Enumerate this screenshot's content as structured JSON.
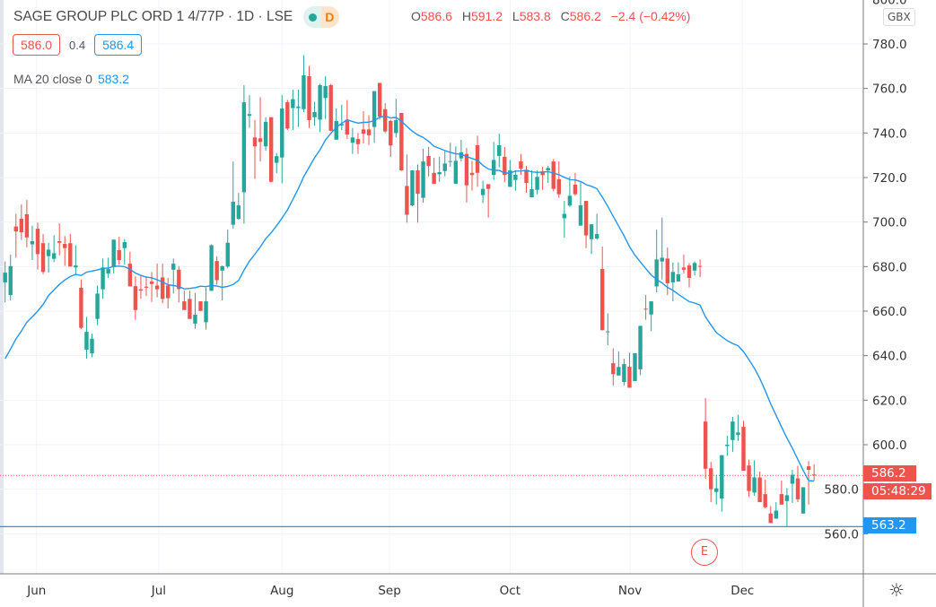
{
  "header": {
    "symbol_title": "SAGE GROUP PLC ORD 1 4/77P · 1D · LSE",
    "status_badge_letter": "D",
    "ohlc": {
      "o_label": "O",
      "o": "586.6",
      "h_label": "H",
      "h": "591.2",
      "l_label": "L",
      "l": "583.8",
      "c_label": "C",
      "c": "586.2",
      "change": "−2.4 (−0.42%)"
    },
    "bid": "586.0",
    "spread": "0.4",
    "ask": "586.4",
    "indicator_label": "MA 20 close 0",
    "indicator_value": "583.2"
  },
  "price_axis": {
    "currency": "GBX",
    "ticks": [
      "800.0",
      "780.0",
      "760.0",
      "740.0",
      "720.0",
      "700.0",
      "680.0",
      "660.0",
      "640.0",
      "620.0",
      "600.0",
      "580.0",
      "560.0"
    ],
    "last_price_label": "586.2",
    "countdown": "05:48:29",
    "horizontal_line_label": "563.2"
  },
  "earnings_marker": "E",
  "colors": {
    "up": "#26a69a",
    "down": "#ef5350",
    "ma": "#2196f3",
    "hline": "#2196f3",
    "grid": "#f0f3fa"
  },
  "chart_data": {
    "type": "candlestick",
    "title": "SAGE GROUP PLC ORD 1 4/77P · 1D · LSE",
    "ylim": [
      550,
      800
    ],
    "grid": true,
    "x_ticks": [
      {
        "label": "Jun",
        "bar": 5.8
      },
      {
        "label": "Jul",
        "bar": 28.3
      },
      {
        "label": "Aug",
        "bar": 51
      },
      {
        "label": "Sep",
        "bar": 70.8
      },
      {
        "label": "Oct",
        "bar": 93
      },
      {
        "label": "Nov",
        "bar": 115.1
      },
      {
        "label": "Dec",
        "bar": 135.8
      }
    ],
    "horizontal_line": 563.2,
    "last_price": 586.2,
    "ma_period": 20,
    "ma_leading": [
      638.6,
      643,
      647.5,
      651,
      655,
      657.5,
      660,
      663,
      667,
      669.5,
      672,
      674,
      675.5,
      676.5,
      676,
      677.5,
      678,
      678.5,
      679.2
    ],
    "candles_ohlc": [
      [
        672.9,
        682.3,
        663.9,
        677.3
      ],
      [
        667.2,
        685.4,
        664.8,
        680.2
      ],
      [
        698,
        703.7,
        684,
        695.8
      ],
      [
        701.5,
        708,
        692,
        695.4
      ],
      [
        703.5,
        710,
        688.7,
        693.1
      ],
      [
        690,
        698.4,
        683,
        691.4
      ],
      [
        697,
        699.7,
        678.6,
        685.6
      ],
      [
        690.5,
        694.6,
        676.6,
        677.6
      ],
      [
        684.7,
        690.7,
        677.3,
        687.6
      ],
      [
        683.5,
        694.1,
        682,
        686
      ],
      [
        691.4,
        699.4,
        685,
        690.7
      ],
      [
        690.2,
        693.7,
        680.3,
        688.3
      ],
      [
        690.5,
        694.7,
        680,
        680
      ],
      [
        679.6,
        689.6,
        676.2,
        680.5
      ],
      [
        670.5,
        674.2,
        652,
        652.5
      ],
      [
        642.7,
        657.4,
        638.6,
        650.7
      ],
      [
        641,
        649.8,
        639.3,
        647.6
      ],
      [
        656.5,
        671.5,
        653.7,
        667.9
      ],
      [
        669.8,
        683.6,
        665.5,
        679.6
      ],
      [
        676.9,
        684,
        674.9,
        678.9
      ],
      [
        679.8,
        692.1,
        676.9,
        692.1
      ],
      [
        687.4,
        693.4,
        680.9,
        682.9
      ],
      [
        688.3,
        692.4,
        680.9,
        691
      ],
      [
        681.3,
        686.7,
        671.1,
        671.1
      ],
      [
        671.2,
        675.6,
        656.1,
        660.5
      ],
      [
        669.8,
        676.2,
        665.5,
        669.2
      ],
      [
        671,
        675.6,
        666.8,
        670.5
      ],
      [
        673.3,
        677.6,
        664.1,
        672.2
      ],
      [
        671.5,
        681.3,
        666.2,
        669.8
      ],
      [
        675.1,
        681.3,
        663.5,
        665.5
      ],
      [
        671.5,
        674.9,
        661.2,
        665.8
      ],
      [
        678.6,
        683.6,
        667.9,
        681.3
      ],
      [
        678.6,
        680.2,
        663.9,
        669.9
      ],
      [
        664.4,
        669.2,
        660.5,
        660.5
      ],
      [
        665.5,
        669.2,
        656.5,
        656.5
      ],
      [
        654.4,
        668.2,
        652.1,
        658.4
      ],
      [
        664.4,
        664.4,
        660.1,
        660.1
      ],
      [
        655,
        670.6,
        651.7,
        664.4
      ],
      [
        669.1,
        690,
        669.1,
        689.6
      ],
      [
        682.5,
        684.5,
        671.9,
        673.9
      ],
      [
        678.2,
        680.5,
        664.8,
        680.2
      ],
      [
        680,
        696.6,
        679.2,
        690.7
      ],
      [
        698.8,
        727.2,
        697,
        709.1
      ],
      [
        701.5,
        713.1,
        701.1,
        707.5
      ],
      [
        713.4,
        761.5,
        699.3,
        753.8
      ],
      [
        747.7,
        757,
        742.3,
        748.5
      ],
      [
        738,
        745.8,
        719.4,
        734
      ],
      [
        737.6,
        756.1,
        727.2,
        736
      ],
      [
        734,
        747.1,
        732,
        745
      ],
      [
        747.1,
        747.1,
        717.8,
        718.1
      ],
      [
        726.6,
        731,
        721.9,
        729.6
      ],
      [
        729,
        757,
        717.4,
        751
      ],
      [
        753.8,
        754.8,
        741.3,
        742
      ],
      [
        751.2,
        759.5,
        741.3,
        755.2
      ],
      [
        751.2,
        759.5,
        742.7,
        751.9
      ],
      [
        750.7,
        774.9,
        749.4,
        765.9
      ],
      [
        765.5,
        770.2,
        742.3,
        745.8
      ],
      [
        747.1,
        754,
        743.3,
        749.4
      ],
      [
        746,
        762.1,
        740.4,
        761.5
      ],
      [
        755.7,
        765.5,
        746.3,
        761.1
      ],
      [
        761.5,
        762.1,
        740.7,
        741
      ],
      [
        737,
        751,
        737,
        745.4
      ],
      [
        743.4,
        752.7,
        741.3,
        744
      ],
      [
        746,
        754.8,
        737.3,
        739.3
      ],
      [
        735.6,
        742.3,
        730.6,
        738
      ],
      [
        737.3,
        740,
        730.6,
        735
      ],
      [
        741.6,
        749.8,
        735.3,
        739.7
      ],
      [
        741.6,
        748,
        734.6,
        739
      ],
      [
        742.7,
        758.8,
        735.6,
        758.8
      ],
      [
        762.5,
        762.5,
        746,
        747.4
      ],
      [
        750.7,
        753.4,
        740,
        740.7
      ],
      [
        745.4,
        746,
        729.2,
        734.4
      ],
      [
        740,
        755.4,
        738,
        745.8
      ],
      [
        749,
        749,
        723,
        723.2
      ],
      [
        716.2,
        730.3,
        699.7,
        703.3
      ],
      [
        707.5,
        723.2,
        707.1,
        723.2
      ],
      [
        723.2,
        725.9,
        699.7,
        712.7
      ],
      [
        710.9,
        732.9,
        708.7,
        727.2
      ],
      [
        729.7,
        733.7,
        720.5,
        725.2
      ],
      [
        722.1,
        728.9,
        717.2,
        717.2
      ],
      [
        721.5,
        729.3,
        718.1,
        722.4
      ],
      [
        722.9,
        731.9,
        720.5,
        726.3
      ],
      [
        727.1,
        735.6,
        724.8,
        727.4
      ],
      [
        717.2,
        734,
        717.2,
        727.5
      ],
      [
        728.6,
        736.9,
        727.2,
        731.3
      ],
      [
        730.6,
        733.3,
        708.8,
        716.5
      ],
      [
        722.1,
        727.5,
        714.1,
        721.1
      ],
      [
        734.5,
        738.8,
        715.8,
        722.1
      ],
      [
        712.1,
        718.5,
        708.5,
        714.9
      ],
      [
        717,
        717,
        702,
        714.9
      ],
      [
        721.2,
        736,
        718.9,
        727.9
      ],
      [
        729.7,
        739.7,
        724.6,
        734.5
      ],
      [
        729.3,
        733.7,
        717.9,
        721.2
      ],
      [
        715.8,
        727.9,
        715.8,
        723.2
      ],
      [
        718.9,
        723.2,
        714.1,
        721.2
      ],
      [
        727.2,
        730.6,
        721.2,
        723.9
      ],
      [
        723.5,
        725.2,
        713.2,
        717.6
      ],
      [
        711.1,
        723.2,
        711.1,
        714.8
      ],
      [
        714.5,
        723.2,
        712.5,
        720.3
      ],
      [
        722.4,
        724.8,
        714.5,
        721.1
      ],
      [
        723.2,
        725.2,
        717.6,
        724.3
      ],
      [
        727.2,
        728.3,
        713.8,
        714.9
      ],
      [
        719.2,
        727.2,
        710.9,
        712.5
      ],
      [
        701.7,
        709.5,
        693,
        703.7
      ],
      [
        707.4,
        720.5,
        706.8,
        711.8
      ],
      [
        716.8,
        722.1,
        711.8,
        712.5
      ],
      [
        698.4,
        717.9,
        698.4,
        707.5
      ],
      [
        709.5,
        709.5,
        688.3,
        694
      ],
      [
        692.3,
        699,
        685.6,
        699
      ],
      [
        692.6,
        703.7,
        692.1,
        694.6
      ],
      [
        678.9,
        689,
        651.4,
        651.4
      ],
      [
        650.6,
        659,
        644.7,
        650.9
      ],
      [
        636.6,
        643.3,
        626.6,
        631.7
      ],
      [
        631.1,
        642,
        631.1,
        634.9
      ],
      [
        628.2,
        638.6,
        626.6,
        636.2
      ],
      [
        635,
        641.3,
        625.6,
        625.6
      ],
      [
        628.6,
        641.1,
        628.6,
        641.1
      ],
      [
        633.9,
        653.4,
        631.3,
        653.4
      ],
      [
        661.1,
        667.2,
        656.1,
        660.7
      ],
      [
        658.5,
        664.4,
        651,
        664.4
      ],
      [
        671.1,
        696.6,
        668.4,
        683.2
      ],
      [
        682.3,
        702,
        674.2,
        684
      ],
      [
        683.6,
        688.6,
        667.2,
        672.5
      ],
      [
        672.9,
        681.9,
        664.4,
        677.6
      ],
      [
        673.3,
        681.9,
        673.3,
        676.5
      ],
      [
        679.6,
        685.4,
        676.9,
        678.6
      ],
      [
        680.5,
        681.6,
        670.6,
        674.9
      ],
      [
        678.2,
        682.3,
        676,
        681.6
      ],
      [
        680.3,
        683.2,
        675.3,
        680
      ],
      [
        610.4,
        620.9,
        584.7,
        589.2
      ],
      [
        589.4,
        592.3,
        574.2,
        580
      ],
      [
        578.8,
        586.5,
        573.1,
        580.4
      ],
      [
        575.8,
        595.3,
        569.9,
        595.3
      ],
      [
        599.4,
        604,
        595,
        600
      ],
      [
        602.1,
        612.5,
        596.8,
        610.4
      ],
      [
        604.4,
        613.5,
        601.7,
        605.5
      ],
      [
        608,
        610.7,
        588.3,
        588.3
      ],
      [
        590.7,
        593.3,
        576.6,
        579.2
      ],
      [
        578.5,
        593,
        577.1,
        585.3
      ],
      [
        585.3,
        587.9,
        574.2,
        574.2
      ],
      [
        577.8,
        584.3,
        571.5,
        571.9
      ],
      [
        569.1,
        572.4,
        564.8,
        564.8
      ],
      [
        566.8,
        574.2,
        566.8,
        570.4
      ],
      [
        577.8,
        583.9,
        573.1,
        573.1
      ],
      [
        574.7,
        580.5,
        563.5,
        577.3
      ],
      [
        582.5,
        588.7,
        573.8,
        586.5
      ],
      [
        584.9,
        590.6,
        574.2,
        575.5
      ],
      [
        569.1,
        580.9,
        569.1,
        580.9
      ],
      [
        590.3,
        592.7,
        573.1,
        588.7
      ],
      [
        586.6,
        591.2,
        583.8,
        586.2
      ]
    ]
  }
}
